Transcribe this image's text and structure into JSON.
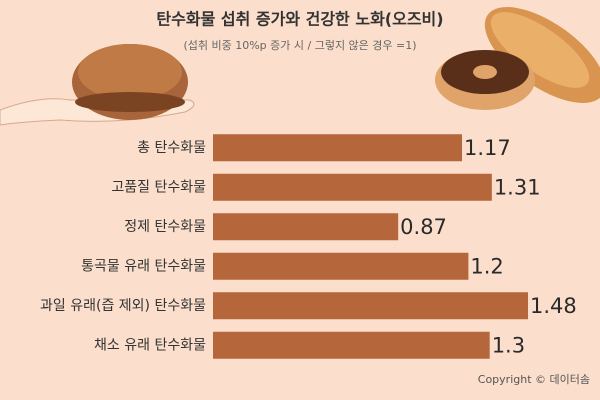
{
  "chart_data": {
    "type": "bar",
    "orientation": "horizontal",
    "title": "탄수화물 섭취 증가와 건강한 노화(오즈비)",
    "subtitle": "(섭취 비중 10%p 증가 시 / 그렇지 않은 경우 =1)",
    "categories": [
      "총 탄수화물",
      "고품질 탄수화물",
      "정제 탄수화물",
      "통곡물 유래 탄수화물",
      "과일 유래(즙 제외) 탄수화물",
      "채소 유래 탄수화물"
    ],
    "values": [
      1.17,
      1.31,
      0.87,
      1.2,
      1.48,
      1.3
    ],
    "color": "#b5663a",
    "credit": "Copyright © 데이터솜"
  }
}
